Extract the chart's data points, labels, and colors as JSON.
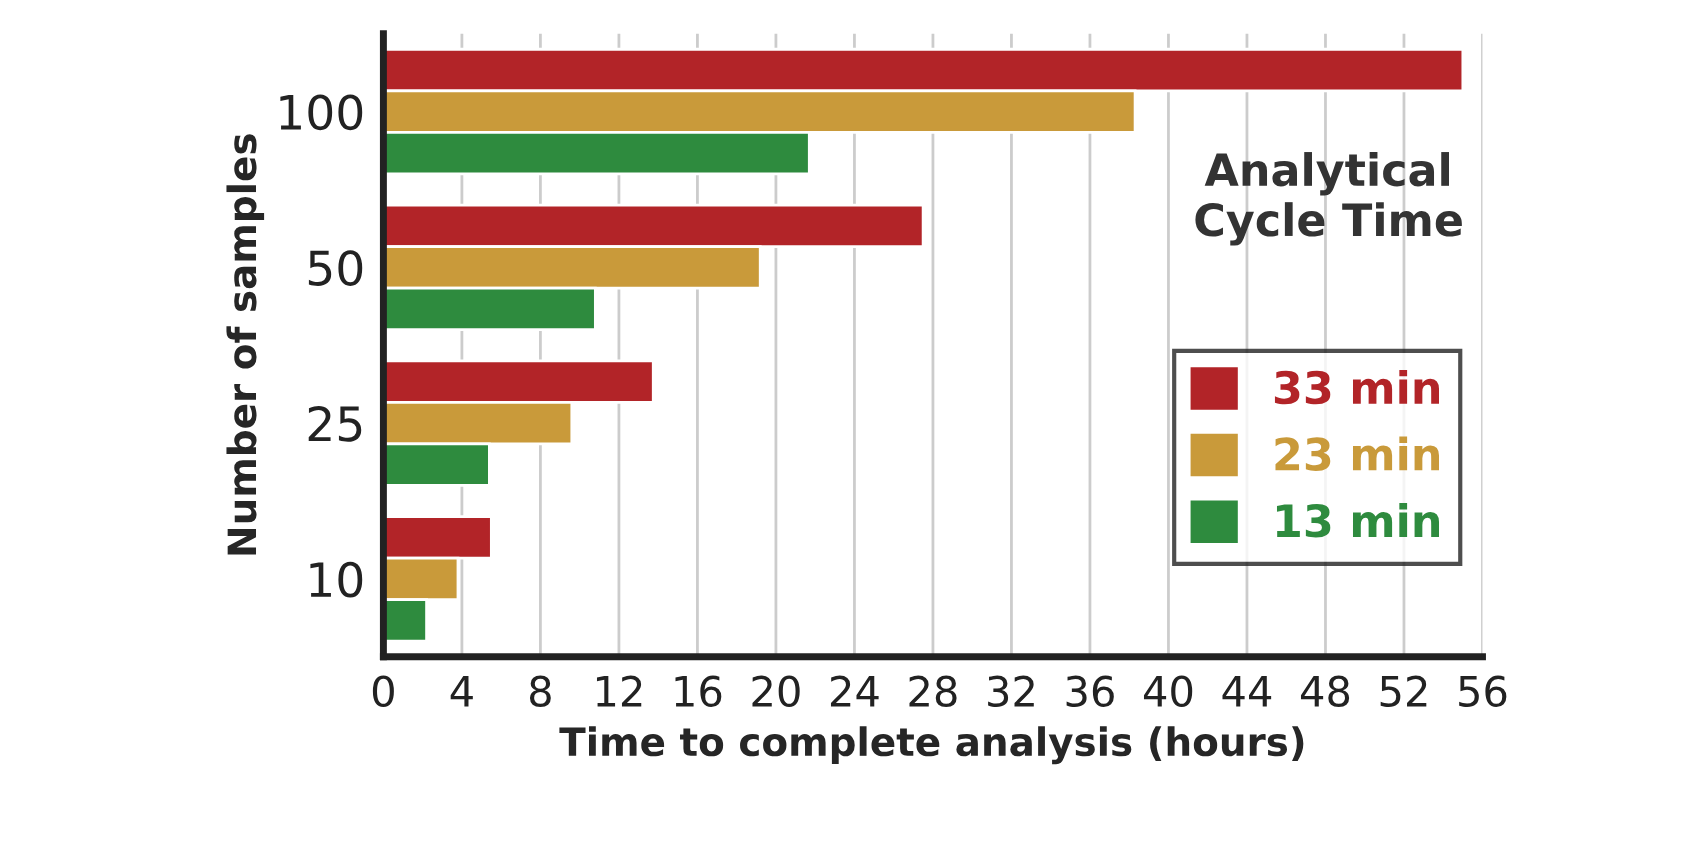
{
  "chart_data": {
    "type": "bar",
    "orientation": "horizontal",
    "xlabel": "Time to complete analysis (hours)",
    "ylabel": "Number of samples",
    "legend_title": "Analytical\nCycle Time",
    "categories": [
      "100",
      "50",
      "25",
      "10"
    ],
    "series": [
      {
        "name": "33 min",
        "color": "#b22428",
        "values": [
          55,
          27.5,
          13.75,
          5.5
        ]
      },
      {
        "name": "23 min",
        "color": "#c99a3a",
        "values": [
          38.3,
          19.2,
          9.6,
          3.8
        ]
      },
      {
        "name": "13 min",
        "color": "#2e8b3e",
        "values": [
          21.7,
          10.8,
          5.4,
          2.2
        ]
      }
    ],
    "xlim": [
      0,
      56
    ],
    "xticks": [
      0,
      4,
      8,
      12,
      16,
      20,
      24,
      28,
      32,
      36,
      40,
      44,
      48,
      52,
      56
    ],
    "grid": "x",
    "legend": "right"
  }
}
